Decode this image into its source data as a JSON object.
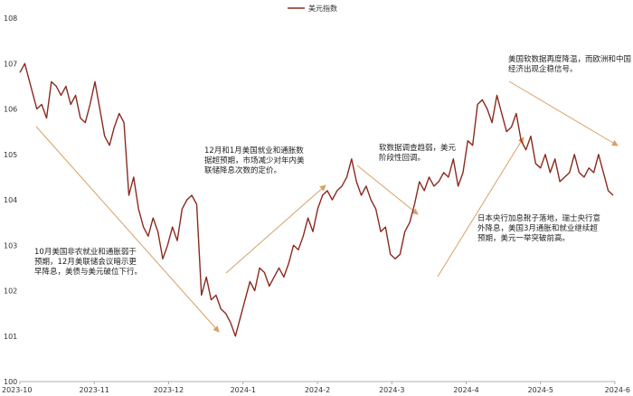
{
  "chart_data": {
    "type": "line",
    "title": "",
    "xlabel": "",
    "ylabel": "",
    "legend": {
      "position": "top-center",
      "label": "美元指数"
    },
    "grid": false,
    "ylim": [
      100,
      108
    ],
    "yticks": [
      "100",
      "101",
      "102",
      "103",
      "104",
      "105",
      "106",
      "107",
      "108"
    ],
    "xticks": [
      "2023-10",
      "2023-11",
      "2023-12",
      "2024-1",
      "2024-2",
      "2024-3",
      "2024-4",
      "2024-5",
      "2024-6"
    ],
    "colors": {
      "line": "#8B2A1F",
      "arrow": "#D9A066",
      "axis": "#999999"
    },
    "series": [
      {
        "name": "美元指数",
        "x": [
          0,
          2,
          5,
          7,
          9,
          11,
          13,
          15,
          17,
          19,
          21,
          23,
          25,
          27,
          29,
          31,
          33,
          35,
          37,
          39,
          41,
          43,
          45,
          47,
          49,
          51,
          53,
          55,
          57,
          59,
          61,
          63,
          65,
          67,
          69,
          71,
          73,
          75,
          77,
          79,
          81,
          83,
          85,
          87,
          89,
          91,
          93,
          95,
          97,
          99,
          101,
          103,
          105,
          107,
          109,
          111,
          113,
          115,
          117,
          119,
          121,
          123,
          125,
          127,
          129,
          131,
          133,
          135,
          137,
          139,
          141,
          143,
          145,
          147,
          149,
          151,
          153,
          155,
          157,
          159,
          161,
          163,
          165,
          167,
          169,
          171,
          173,
          175,
          177,
          179,
          181,
          183,
          185,
          187,
          189,
          191,
          193,
          195,
          197,
          199,
          201,
          203,
          205,
          207,
          209,
          211,
          213,
          215,
          217,
          219,
          221,
          223,
          225,
          227,
          229,
          231,
          233,
          235,
          237,
          239,
          241,
          243,
          245
        ],
        "values": [
          106.8,
          107.0,
          106.4,
          106.0,
          106.1,
          105.8,
          106.6,
          106.5,
          106.3,
          106.5,
          106.1,
          106.3,
          105.8,
          105.7,
          106.1,
          106.6,
          106.0,
          105.4,
          105.2,
          105.6,
          105.9,
          105.7,
          104.1,
          104.5,
          103.8,
          103.4,
          103.2,
          103.6,
          103.3,
          102.7,
          103.0,
          103.4,
          103.1,
          103.8,
          104.0,
          104.1,
          103.9,
          101.9,
          102.3,
          101.8,
          101.9,
          101.6,
          101.5,
          101.3,
          101.0,
          101.4,
          101.8,
          102.2,
          102.0,
          102.5,
          102.4,
          102.1,
          102.3,
          102.5,
          102.3,
          102.6,
          103.0,
          102.9,
          103.2,
          103.6,
          103.3,
          103.8,
          104.1,
          104.2,
          104.0,
          104.2,
          104.3,
          104.5,
          104.9,
          104.4,
          104.1,
          104.3,
          104.0,
          103.8,
          103.3,
          103.4,
          102.8,
          102.7,
          102.8,
          103.3,
          103.5,
          103.9,
          104.4,
          104.2,
          104.5,
          104.3,
          104.4,
          104.6,
          104.5,
          104.9,
          104.3,
          104.6,
          105.3,
          105.2,
          106.1,
          106.2,
          106.0,
          105.7,
          106.3,
          105.9,
          105.5,
          105.6,
          105.9,
          105.3,
          105.1,
          105.4,
          104.8,
          104.7,
          105.0,
          104.6,
          104.9,
          104.4,
          104.5,
          104.6,
          105.0,
          104.6,
          104.5,
          104.7,
          104.6,
          105.0,
          104.6,
          104.2,
          104.1
        ]
      }
    ],
    "annotations": [
      {
        "id": "oct",
        "lines": [
          "10月美国非农就业和通胀弱于",
          "预期，12月美联储会议暗示更",
          "早降息，美债与美元破位下行。"
        ]
      },
      {
        "id": "jan",
        "lines": [
          "12月和1月美国就业和通胀数",
          "据超预期，市场减少对年内美",
          "联储降息次数的定价。"
        ]
      },
      {
        "id": "mar",
        "lines": [
          "软数据调查趋弱，美元",
          "阶段性回调。"
        ]
      },
      {
        "id": "apr",
        "lines": [
          "日本央行加息靴子落地，瑞士央行意",
          "外降息，美国3月通胀和就业继续超",
          "预期，美元一举突破前高。"
        ]
      },
      {
        "id": "may",
        "lines": [
          "美国软数据再度降温，而欧洲和中国",
          "经济出现企稳信号。"
        ]
      }
    ]
  }
}
